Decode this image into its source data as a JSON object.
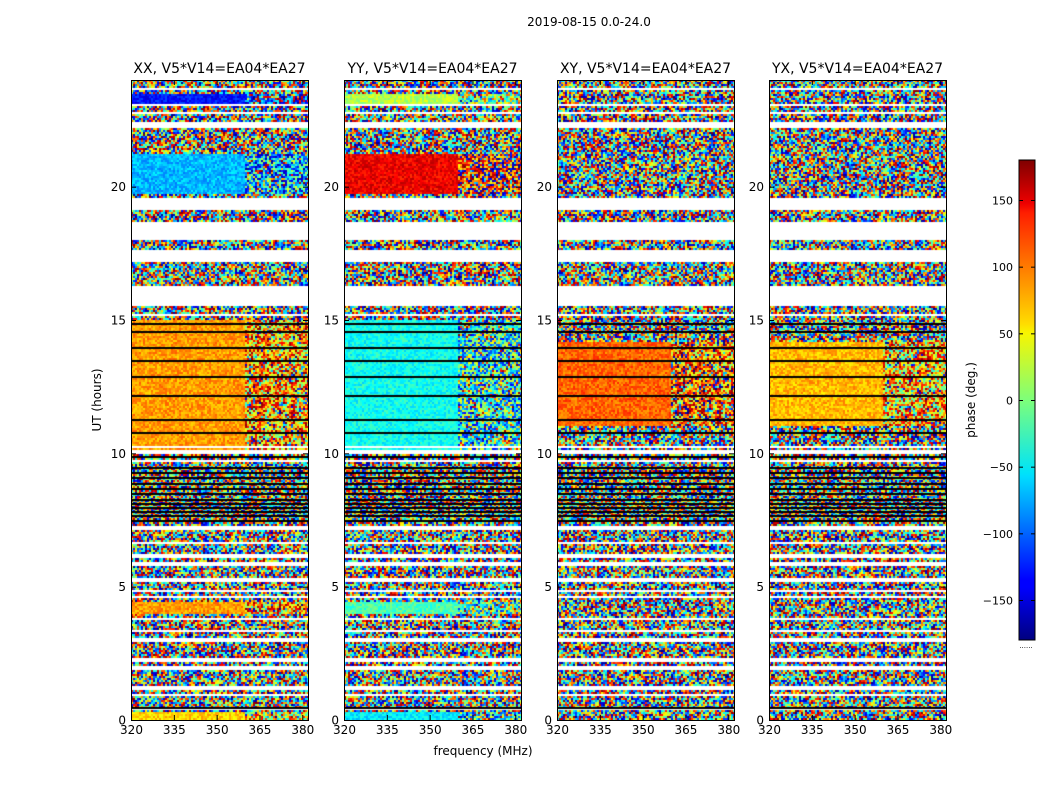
{
  "chart_data": {
    "type": "heatmap",
    "title": "2019-08-15 0.0-24.0",
    "xlabel": "frequency (MHz)",
    "ylabel": "UT (hours)",
    "xlim": [
      320,
      382
    ],
    "ylim": [
      0,
      24
    ],
    "xticks": [
      320,
      335,
      350,
      365,
      380
    ],
    "yticks": [
      0,
      5,
      10,
      15,
      20
    ],
    "panels": [
      {
        "title": "XX, V5*V14=EA04*EA27",
        "value_bands": [
          {
            "ut": [
              0.0,
              0.3
            ],
            "phase": 60
          },
          {
            "ut": [
              4.0,
              4.4
            ],
            "phase": 80
          },
          {
            "ut": [
              10.0,
              15.0
            ],
            "phase": 80
          },
          {
            "ut": [
              19.7,
              21.2
            ],
            "phase": -70
          },
          {
            "ut": [
              23.0,
              23.5
            ],
            "phase": -130
          }
        ]
      },
      {
        "title": "YY, V5*V14=EA04*EA27",
        "value_bands": [
          {
            "ut": [
              0.0,
              0.3
            ],
            "phase": -50
          },
          {
            "ut": [
              4.0,
              4.4
            ],
            "phase": -20
          },
          {
            "ut": [
              10.0,
              15.0
            ],
            "phase": -40
          },
          {
            "ut": [
              19.7,
              21.2
            ],
            "phase": 140
          },
          {
            "ut": [
              23.0,
              23.5
            ],
            "phase": 20
          }
        ]
      },
      {
        "title": "XY, V5*V14=EA04*EA27",
        "value_bands": [
          {
            "ut": [
              11.0,
              14.2
            ],
            "phase": 100
          }
        ]
      },
      {
        "title": "YX, V5*V14=EA04*EA27",
        "value_bands": [
          {
            "ut": [
              11.0,
              14.2
            ],
            "phase": 70
          }
        ]
      }
    ],
    "gaps_ut": [
      [
        0.35,
        0.45
      ],
      [
        0.9,
        1.0
      ],
      [
        1.15,
        1.3
      ],
      [
        1.9,
        2.0
      ],
      [
        2.15,
        2.3
      ],
      [
        2.95,
        3.05
      ],
      [
        3.3,
        3.4
      ],
      [
        3.75,
        3.85
      ],
      [
        4.55,
        4.65
      ],
      [
        4.8,
        4.9
      ],
      [
        5.2,
        5.3
      ],
      [
        5.8,
        5.9
      ],
      [
        6.1,
        6.2
      ],
      [
        6.6,
        6.7
      ],
      [
        7.15,
        7.25
      ],
      [
        9.65,
        9.75
      ],
      [
        10.0,
        10.1
      ],
      [
        10.2,
        10.3
      ],
      [
        15.15,
        15.25
      ],
      [
        15.5,
        16.3
      ],
      [
        17.2,
        17.6
      ],
      [
        18.0,
        18.7
      ],
      [
        19.1,
        19.6
      ],
      [
        22.2,
        22.4
      ],
      [
        22.7,
        22.8
      ],
      [
        23.0,
        23.1
      ],
      [
        23.6,
        23.7
      ]
    ],
    "flag_lines_ut": [
      0.5,
      7.5,
      7.7,
      7.85,
      8.0,
      8.15,
      8.3,
      8.5,
      8.7,
      8.9,
      9.1,
      9.3,
      9.5,
      9.9,
      10.8,
      11.3,
      12.2,
      12.9,
      13.5,
      14.0,
      14.6,
      14.9
    ],
    "colorbar": {
      "label": "phase (deg.)",
      "range": [
        -180,
        180
      ],
      "ticks": [
        -150,
        -100,
        -50,
        0,
        50,
        100,
        150
      ],
      "tick_labels": [
        "−150",
        "−100",
        "−50",
        "0",
        "50",
        "100",
        "150"
      ],
      "colormap": "jet",
      "underlabel": "......"
    }
  }
}
